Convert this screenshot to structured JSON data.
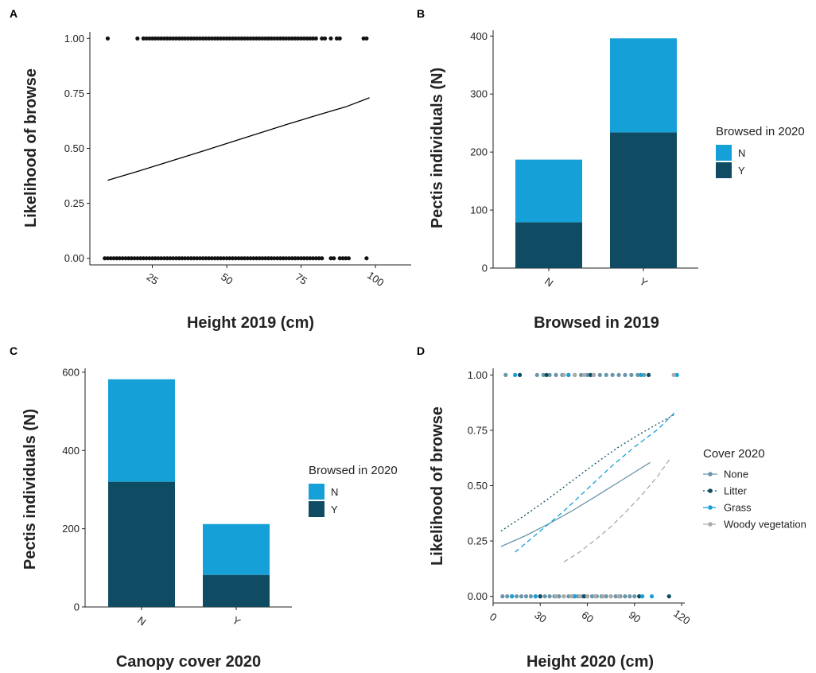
{
  "colors": {
    "browsed_N": "#16a0d8",
    "browsed_Y": "#0f4c63",
    "axis": "#222222",
    "point": "#111111",
    "cover_None": "#6a96aa",
    "cover_Litter": "#0f4c63",
    "cover_Grass": "#16a0d8",
    "cover_Woody": "#aaaaaa"
  },
  "chart_data": [
    {
      "panel": "A",
      "type": "scatter",
      "xlabel": "Height 2019 (cm)",
      "ylabel": "Likelihood of browse",
      "xlim": [
        4,
        112
      ],
      "ylim": [
        -0.03,
        1.03
      ],
      "xticks": [
        25,
        50,
        75,
        100
      ],
      "xtick_labels": [
        "25",
        "50",
        "75",
        "100"
      ],
      "yticks": [
        0,
        0.25,
        0.5,
        0.75,
        1
      ],
      "ytick_labels": [
        "0.00",
        "0.25",
        "0.50",
        "0.75",
        "1.00"
      ],
      "x_tick_rotation": "rotated -35°",
      "grid": false,
      "points_y1_x": [
        10,
        20,
        22,
        23,
        24,
        25,
        26,
        27,
        28,
        29,
        30,
        31,
        32,
        33,
        34,
        35,
        36,
        37,
        38,
        39,
        40,
        41,
        42,
        43,
        44,
        45,
        46,
        47,
        48,
        49,
        50,
        51,
        52,
        53,
        54,
        55,
        56,
        57,
        58,
        59,
        60,
        61,
        62,
        63,
        64,
        65,
        66,
        67,
        68,
        69,
        70,
        71,
        72,
        73,
        74,
        75,
        76,
        77,
        78,
        79,
        80,
        82,
        83,
        85,
        87,
        88,
        96,
        97
      ],
      "points_y0_x": [
        9,
        10,
        11,
        12,
        13,
        14,
        15,
        16,
        17,
        18,
        19,
        20,
        21,
        22,
        23,
        24,
        25,
        26,
        27,
        28,
        29,
        30,
        31,
        32,
        33,
        34,
        35,
        36,
        37,
        38,
        39,
        40,
        41,
        42,
        43,
        44,
        45,
        46,
        47,
        48,
        49,
        50,
        51,
        52,
        53,
        54,
        55,
        56,
        57,
        58,
        59,
        60,
        61,
        62,
        63,
        64,
        65,
        66,
        67,
        68,
        69,
        70,
        71,
        72,
        73,
        74,
        75,
        76,
        77,
        78,
        79,
        80,
        81,
        82,
        85,
        86,
        88,
        89,
        90,
        91,
        97
      ],
      "fit_line": {
        "x": [
          10,
          20,
          30,
          40,
          50,
          60,
          70,
          80,
          90,
          98
        ],
        "y": [
          0.355,
          0.395,
          0.437,
          0.479,
          0.522,
          0.565,
          0.608,
          0.649,
          0.689,
          0.73
        ]
      }
    },
    {
      "panel": "B",
      "type": "bar",
      "stacked": true,
      "xlabel": "Browsed in 2019",
      "ylabel": "Pectis individuals (N)",
      "categories": [
        "N",
        "Y"
      ],
      "ylim": [
        0,
        410
      ],
      "yticks": [
        0,
        100,
        200,
        300,
        400
      ],
      "x_tick_rotation": "rotated -35°",
      "series": [
        {
          "name": "Y",
          "values": [
            79,
            234
          ]
        },
        {
          "name": "N",
          "values": [
            108,
            162
          ]
        }
      ],
      "legend": {
        "title": "Browsed in 2020",
        "entries": [
          "N",
          "Y"
        ],
        "position": "right"
      }
    },
    {
      "panel": "C",
      "type": "bar",
      "stacked": true,
      "xlabel": "Canopy cover 2020",
      "ylabel": "Pectis individuals (N)",
      "categories": [
        "N",
        "Y"
      ],
      "ylim": [
        0,
        610
      ],
      "yticks": [
        0,
        200,
        400,
        600
      ],
      "x_tick_rotation": "rotated -35°",
      "series": [
        {
          "name": "Y",
          "values": [
            320,
            82
          ]
        },
        {
          "name": "N",
          "values": [
            262,
            130
          ]
        }
      ],
      "legend": {
        "title": "Browsed in 2020",
        "entries": [
          "N",
          "Y"
        ],
        "position": "right"
      }
    },
    {
      "panel": "D",
      "type": "scatter",
      "xlabel": "Height 2020 (cm)",
      "ylabel": "Likelihood of browse",
      "xlim": [
        0,
        122
      ],
      "ylim": [
        -0.03,
        1.03
      ],
      "xticks": [
        0,
        30,
        60,
        90,
        120
      ],
      "xtick_labels": [
        "0",
        "30",
        "60",
        "90",
        "120"
      ],
      "yticks": [
        0,
        0.25,
        0.5,
        0.75,
        1
      ],
      "ytick_labels": [
        "0.00",
        "0.25",
        "0.50",
        "0.75",
        "1.00"
      ],
      "x_tick_rotation": "rotated -35°",
      "legend": {
        "title": "Cover 2020",
        "position": "right",
        "entries": [
          "None",
          "Litter",
          "Grass",
          "Woody vegetation"
        ]
      },
      "series": [
        {
          "name": "None",
          "line_style": "solid",
          "y1_x": [
            8,
            28,
            32,
            36,
            40,
            44,
            48,
            52,
            56,
            60,
            64,
            68,
            72,
            76,
            80,
            84,
            88,
            92,
            96
          ],
          "y0_x": [
            6,
            9,
            12,
            15,
            18,
            21,
            24,
            27,
            30,
            33,
            36,
            39,
            42,
            45,
            48,
            51,
            54,
            57,
            60,
            63,
            66,
            69,
            72,
            75,
            78,
            81,
            84,
            87,
            90,
            93
          ],
          "fit_x": [
            5,
            20,
            35,
            50,
            65,
            80,
            100
          ],
          "fit_y": [
            0.225,
            0.272,
            0.326,
            0.385,
            0.45,
            0.516,
            0.605
          ]
        },
        {
          "name": "Litter",
          "line_style": "dotted",
          "y1_x": [
            17,
            34,
            62,
            99
          ],
          "y0_x": [
            30,
            58,
            93,
            112
          ],
          "fit_x": [
            5,
            20,
            35,
            50,
            65,
            80,
            95,
            115
          ],
          "fit_y": [
            0.295,
            0.365,
            0.44,
            0.52,
            0.6,
            0.675,
            0.74,
            0.82
          ]
        },
        {
          "name": "Grass",
          "line_style": "dashed",
          "y1_x": [
            14,
            48,
            94,
            117
          ],
          "y0_x": [
            12,
            27,
            52,
            95,
            101
          ],
          "fit_x": [
            14,
            30,
            45,
            60,
            75,
            90,
            105,
            117
          ],
          "fit_y": [
            0.2,
            0.295,
            0.385,
            0.485,
            0.585,
            0.675,
            0.755,
            0.84
          ]
        },
        {
          "name": "Woody vegetation",
          "line_style": "dashed",
          "y1_x": [
            45,
            52,
            58,
            64,
            115
          ],
          "y0_x": [
            40,
            45,
            50,
            55,
            60,
            65,
            70,
            75,
            80
          ],
          "fit_x": [
            45,
            55,
            65,
            75,
            85,
            95,
            105,
            113
          ],
          "fit_y": [
            0.155,
            0.2,
            0.255,
            0.315,
            0.385,
            0.46,
            0.545,
            0.625
          ]
        }
      ]
    }
  ]
}
